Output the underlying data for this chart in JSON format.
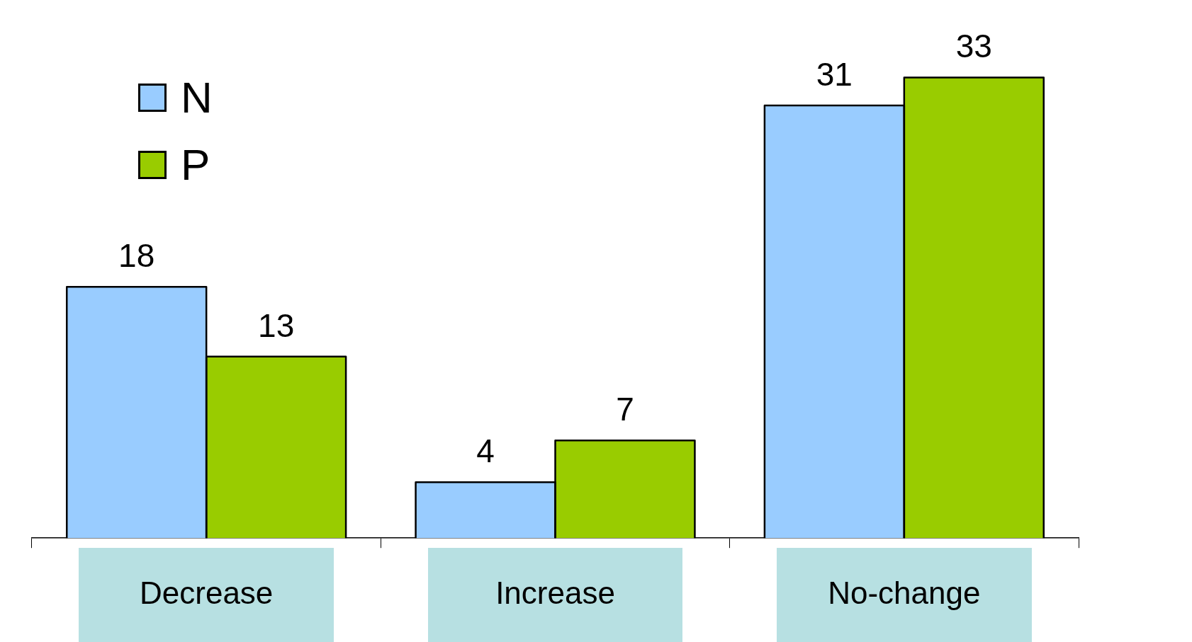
{
  "chart_data": {
    "type": "bar",
    "categories": [
      "Decrease",
      "Increase",
      "No-change"
    ],
    "series": [
      {
        "name": "N",
        "color": "#99ccff",
        "values": [
          18,
          4,
          31
        ]
      },
      {
        "name": "P",
        "color": "#99cc00",
        "values": [
          13,
          7,
          33
        ]
      }
    ],
    "data_labels": true,
    "legend": "top left"
  }
}
